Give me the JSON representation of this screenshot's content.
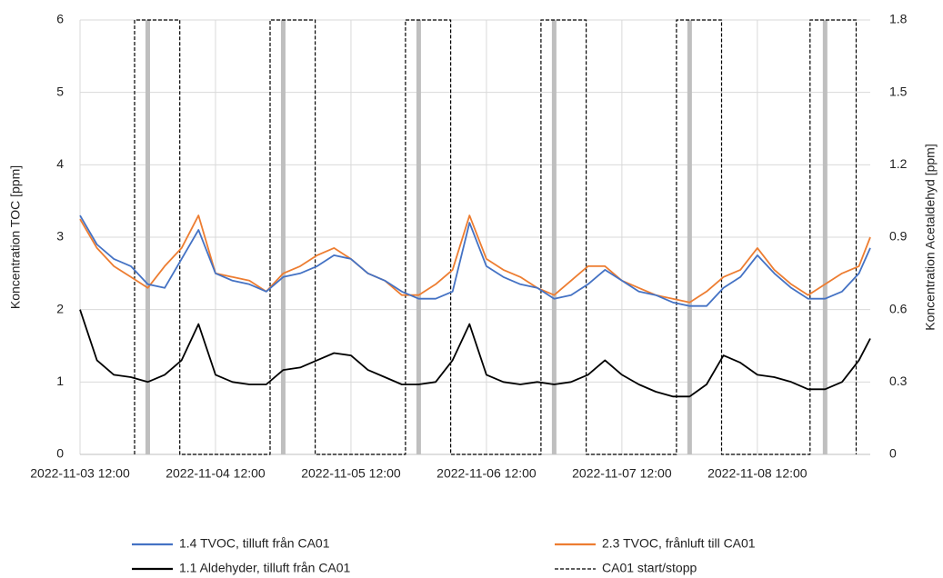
{
  "chart_data": {
    "type": "line",
    "ylabel": "Koncentration TOC [ppm]",
    "y2label": "Koncentration Acetaldehyd [ppm]",
    "ylim": [
      0,
      6
    ],
    "yticks": [
      0,
      1,
      2,
      3,
      4,
      5,
      6
    ],
    "y2lim": [
      0,
      1.8
    ],
    "y2ticks": [
      0,
      0.3,
      {
        "value": 0.6,
        "label": "0.6"
      },
      0.9,
      1.2,
      1.5,
      1.8
    ],
    "xlim": [
      "2022-11-03 12:00",
      "2022-11-09 08:00"
    ],
    "xticks": [
      "2022-11-03 12:00",
      "2022-11-04 12:00",
      "2022-11-05 12:00",
      "2022-11-06 12:00",
      "2022-11-07 12:00",
      "2022-11-08 12:00"
    ],
    "x_markers": [
      "2022-11-04 00:00",
      "2022-11-05 00:00",
      "2022-11-06 00:00",
      "2022-11-07 00:00",
      "2022-11-08 00:00",
      "2022-11-09 00:00"
    ],
    "marker_color": "#bfbfbf",
    "grid": true,
    "legend": "bottom",
    "x": [
      "2022-11-03 12:00",
      "2022-11-03 15:00",
      "2022-11-03 18:00",
      "2022-11-03 21:00",
      "2022-11-04 00:00",
      "2022-11-04 03:00",
      "2022-11-04 06:00",
      "2022-11-04 09:00",
      "2022-11-04 12:00",
      "2022-11-04 15:00",
      "2022-11-04 18:00",
      "2022-11-04 21:00",
      "2022-11-05 00:00",
      "2022-11-05 03:00",
      "2022-11-05 06:00",
      "2022-11-05 09:00",
      "2022-11-05 12:00",
      "2022-11-05 15:00",
      "2022-11-05 18:00",
      "2022-11-05 21:00",
      "2022-11-06 00:00",
      "2022-11-06 03:00",
      "2022-11-06 06:00",
      "2022-11-06 09:00",
      "2022-11-06 12:00",
      "2022-11-06 15:00",
      "2022-11-06 18:00",
      "2022-11-06 21:00",
      "2022-11-07 00:00",
      "2022-11-07 03:00",
      "2022-11-07 06:00",
      "2022-11-07 09:00",
      "2022-11-07 12:00",
      "2022-11-07 15:00",
      "2022-11-07 18:00",
      "2022-11-07 21:00",
      "2022-11-08 00:00",
      "2022-11-08 03:00",
      "2022-11-08 06:00",
      "2022-11-08 09:00",
      "2022-11-08 12:00",
      "2022-11-08 15:00",
      "2022-11-08 18:00",
      "2022-11-08 21:00",
      "2022-11-09 00:00",
      "2022-11-09 03:00",
      "2022-11-09 06:00",
      "2022-11-09 08:00"
    ],
    "series": [
      {
        "name": "1.4 TVOC, tilluft från CA01",
        "color": "#4472c4",
        "values": [
          3.3,
          2.9,
          2.7,
          2.6,
          2.35,
          2.3,
          2.7,
          3.1,
          2.5,
          2.4,
          2.35,
          2.25,
          2.45,
          2.5,
          2.6,
          2.75,
          2.7,
          2.5,
          2.4,
          2.25,
          2.15,
          2.15,
          2.25,
          3.2,
          2.6,
          2.45,
          2.35,
          2.3,
          2.15,
          2.2,
          2.35,
          2.55,
          2.4,
          2.25,
          2.2,
          2.1,
          2.05,
          2.05,
          2.3,
          2.45,
          2.75,
          2.5,
          2.3,
          2.15,
          2.15,
          2.25,
          2.5,
          2.85
        ]
      },
      {
        "name": "2.3 TVOC, frånluft till CA01",
        "color": "#ed7d31",
        "values": [
          3.25,
          2.85,
          2.6,
          2.45,
          2.3,
          2.6,
          2.85,
          3.3,
          2.5,
          2.45,
          2.4,
          2.25,
          2.5,
          2.6,
          2.75,
          2.85,
          2.7,
          2.5,
          2.4,
          2.2,
          2.2,
          2.35,
          2.55,
          3.3,
          2.7,
          2.55,
          2.45,
          2.3,
          2.2,
          2.4,
          2.6,
          2.6,
          2.4,
          2.3,
          2.2,
          2.15,
          2.1,
          2.25,
          2.45,
          2.55,
          2.85,
          2.55,
          2.35,
          2.2,
          2.35,
          2.5,
          2.6,
          3.0
        ]
      },
      {
        "name": "1.1 Aldehyder, tilluft från CA01",
        "color": "#000000",
        "axis": "y2",
        "values": [
          0.6,
          0.39,
          0.33,
          0.32,
          0.3,
          0.33,
          0.39,
          0.54,
          0.33,
          0.3,
          0.29,
          0.29,
          0.35,
          0.36,
          0.39,
          0.42,
          0.41,
          0.35,
          0.32,
          0.29,
          0.29,
          0.3,
          0.39,
          0.54,
          0.33,
          0.3,
          0.29,
          0.3,
          0.29,
          0.3,
          0.33,
          0.39,
          0.33,
          0.29,
          0.26,
          0.24,
          0.24,
          0.29,
          0.41,
          0.38,
          0.33,
          0.32,
          0.3,
          0.27,
          0.27,
          0.3,
          0.39,
          0.48
        ]
      },
      {
        "name": "CA01 start/stopp",
        "color": "#000000",
        "dash": true,
        "x": [
          "2022-11-03 21:40",
          "2022-11-03 21:40",
          "2022-11-04 05:40",
          "2022-11-04 05:40",
          "2022-11-04 21:40",
          "2022-11-04 21:40",
          "2022-11-05 05:40",
          "2022-11-05 05:40",
          "2022-11-05 21:40",
          "2022-11-05 21:40",
          "2022-11-06 05:40",
          "2022-11-06 05:40",
          "2022-11-06 21:40",
          "2022-11-06 21:40",
          "2022-11-07 05:40",
          "2022-11-07 05:40",
          "2022-11-07 21:40",
          "2022-11-07 21:40",
          "2022-11-08 05:40",
          "2022-11-08 05:40",
          "2022-11-08 21:20",
          "2022-11-08 21:20",
          "2022-11-09 05:30",
          "2022-11-09 05:30"
        ],
        "values": [
          0,
          6,
          6,
          0,
          0,
          6,
          6,
          0,
          0,
          6,
          6,
          0,
          0,
          6,
          6,
          0,
          0,
          6,
          6,
          0,
          0,
          6,
          6,
          0
        ]
      }
    ]
  }
}
